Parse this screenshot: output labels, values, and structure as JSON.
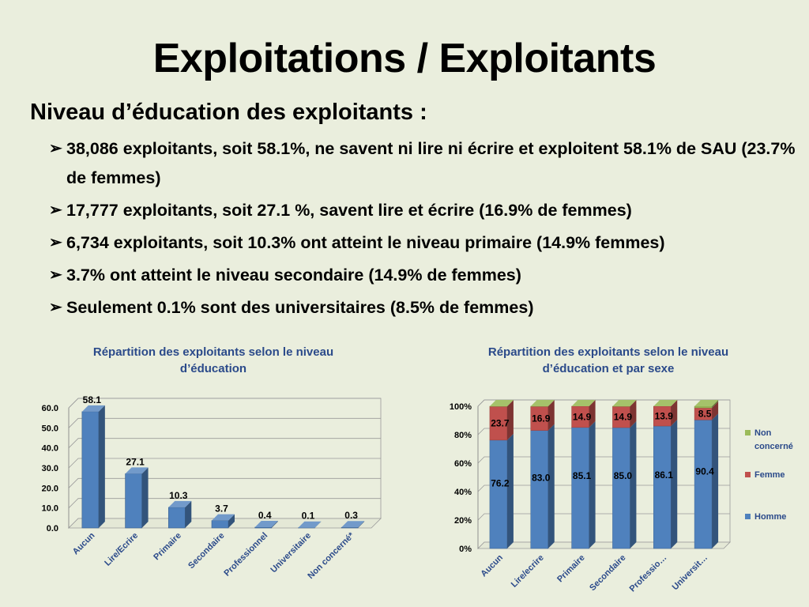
{
  "slide": {
    "title": "Exploitations / Exploitants",
    "subtitle": "Niveau d’éducation des exploitants :",
    "bullet_symbol": "➢",
    "bullets": [
      "38,086 exploitants, soit 58.1%, ne savent ni lire ni écrire et exploitent 58.1% de SAU (23.7% de femmes)",
      "17,777 exploitants, soit 27.1 %,  savent lire et écrire (16.9% de femmes)",
      "6,734 exploitants, soit 10.3% ont atteint le niveau primaire (14.9% femmes)",
      "3.7% ont atteint le niveau secondaire (14.9% de femmes)",
      "Seulement 0.1% sont des universitaires (8.5% de femmes)"
    ]
  },
  "chart_data": [
    {
      "type": "bar",
      "title": "Répartition des exploitants selon le niveau d’éducation",
      "categories": [
        "Aucun",
        "Lire/Ecrire",
        "Primaire",
        "Secondaire",
        "Professionnel",
        "Universitaire",
        "Non concerné*"
      ],
      "values": [
        58.1,
        27.1,
        10.3,
        3.7,
        0.4,
        0.1,
        0.3
      ],
      "data_labels": [
        "58.1",
        "27.1",
        "10.3",
        "3.7",
        "0.4",
        "0.1",
        "0.3"
      ],
      "y_ticks": [
        "0.0",
        "10.0",
        "20.0",
        "30.0",
        "40.0",
        "50.0",
        "60.0"
      ],
      "ylim": [
        0,
        60
      ],
      "grid": true,
      "legend": "none",
      "colors": {
        "bar": "#4f81bd"
      }
    },
    {
      "type": "bar",
      "stacked": "percent",
      "title": "Répartition des exploitants selon le niveau d’éducation et par sexe",
      "categories": [
        "Aucun",
        "Lire/ecrire",
        "Primaire",
        "Secondaire",
        "Professio…",
        "Universit…"
      ],
      "series": [
        {
          "name": "Homme",
          "color": "#4f81bd",
          "values": [
            76.2,
            83.0,
            85.1,
            85.0,
            86.1,
            90.4
          ],
          "labels": [
            "76.2",
            "83.0",
            "85.1",
            "85.0",
            "86.1",
            "90.4"
          ]
        },
        {
          "name": "Femme",
          "color": "#c0504d",
          "values": [
            23.7,
            16.9,
            14.9,
            14.9,
            13.9,
            8.5
          ],
          "labels": [
            "23.7",
            "16.9",
            "14.9",
            "14.9",
            "13.9",
            "8.5"
          ]
        },
        {
          "name": "Non concerné",
          "color": "#9bbb59",
          "values": [
            0.1,
            0.1,
            0.0,
            0.1,
            0.0,
            1.1
          ],
          "labels": []
        }
      ],
      "y_ticks": [
        "0%",
        "20%",
        "40%",
        "60%",
        "80%",
        "100%"
      ],
      "ylim": [
        0,
        100
      ],
      "grid": true,
      "legend": "right",
      "legend_items": [
        {
          "label": "Non concerné",
          "color": "#9bbb59"
        },
        {
          "label": "Femme",
          "color": "#c0504d"
        },
        {
          "label": "Homme",
          "color": "#4f81bd"
        }
      ]
    }
  ]
}
